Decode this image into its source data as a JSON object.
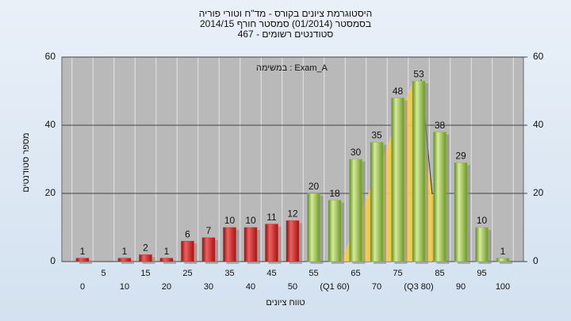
{
  "chart_data": {
    "type": "bar",
    "title": [
      "היסטוגרמת ציונים בקורס - מד\"ח וטורי פוריה",
      "בסמסטר (01/2014) סמסטר חורף 2014/15",
      "סטודנטים רשומים - 467"
    ],
    "annotation": "במשימה : Exam_A",
    "x_label": "טווח ציונים",
    "y_label": "מספר סטודנטים",
    "categories": [
      "0",
      "5",
      "10",
      "15",
      "20",
      "25",
      "30",
      "35",
      "40",
      "45",
      "50",
      "55",
      "(Q1 60)",
      "65",
      "70",
      "75",
      "(Q3 80)",
      "85",
      "90",
      "95",
      "100"
    ],
    "values": [
      1,
      0,
      1,
      2,
      1,
      6,
      7,
      10,
      10,
      11,
      12,
      20,
      18,
      30,
      35,
      48,
      53,
      38,
      29,
      10,
      1
    ],
    "colors": [
      "#d92b2b",
      "#d92b2b",
      "#d92b2b",
      "#d92b2b",
      "#d92b2b",
      "#d92b2b",
      "#d92b2b",
      "#d92b2b",
      "#d92b2b",
      "#d92b2b",
      "#d92b2b",
      "#8dbb3a",
      "#8dbb3a",
      "#8dbb3a",
      "#8dbb3a",
      "#8dbb3a",
      "#8dbb3a",
      "#8dbb3a",
      "#8dbb3a",
      "#8dbb3a",
      "#8dbb3a"
    ],
    "ylim": [
      0,
      60
    ],
    "yticks": [
      0,
      20,
      40,
      60
    ],
    "y2lim": [
      0,
      60
    ],
    "y2ticks": [
      0,
      20,
      40,
      60
    ],
    "grid": true
  }
}
